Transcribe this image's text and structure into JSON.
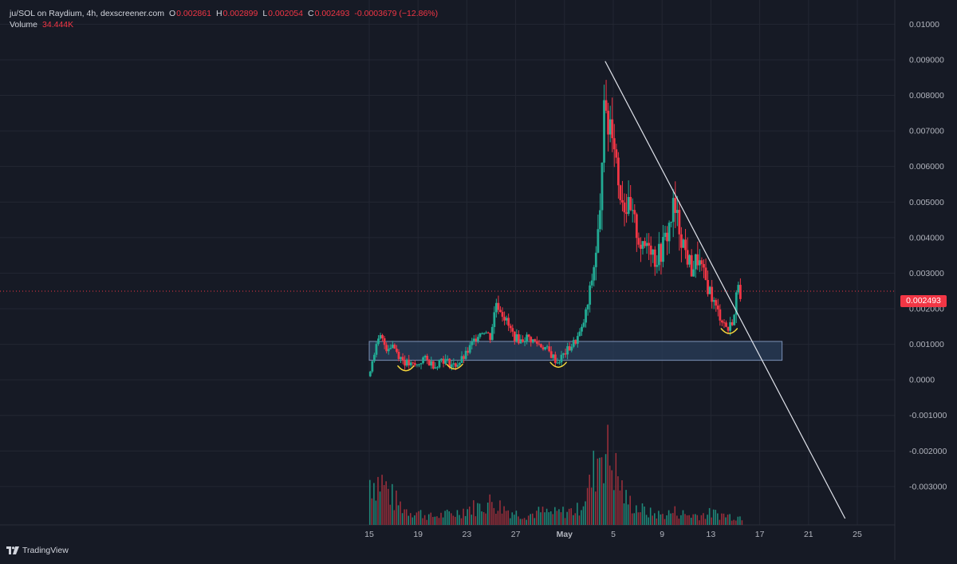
{
  "legend": {
    "title": "ju/SOL on Raydium, 4h, dexscreener.com",
    "open_key": "O",
    "open": "0.002861",
    "high_key": "H",
    "high": "0.002899",
    "low_key": "L",
    "low": "0.002054",
    "close_key": "C",
    "close": "0.002493",
    "change": "-0.0003679 (−12.86%)",
    "volume_label": "Volume",
    "volume_value": "34.444K"
  },
  "branding": {
    "name": "TradingView"
  },
  "colors": {
    "background": "#161a25",
    "grid": "#232733",
    "up": "#22ab94",
    "down": "#f23645",
    "up_volume": "#1f8a7a",
    "down_volume": "#9c2f3b",
    "axis_text": "#b2b5be",
    "trendline": "#e0e3eb",
    "support_zone_fill": "#2a3d5a",
    "support_zone_stroke": "#7d93b8",
    "smile_marks": "#f5d63b",
    "last_price_line": "#f23645"
  },
  "chart_data": {
    "type": "candlestick",
    "pair": "ju/SOL",
    "interval": "4h",
    "y_axis": {
      "min": -0.0039,
      "max": 0.0103,
      "ticks": [
        0.01,
        0.009,
        0.008,
        0.007,
        0.006,
        0.005,
        0.004,
        0.003,
        0.002,
        0.001,
        0.0,
        -0.001,
        -0.002,
        -0.003
      ],
      "tick_labels": [
        "0.01000",
        "0.009000",
        "0.008000",
        "0.007000",
        "0.006000",
        "0.005000",
        "0.004000",
        "0.003000",
        "0.002000",
        "0.001000",
        "0.0000",
        "-0.001000",
        "-0.002000",
        "-0.003000"
      ]
    },
    "x_axis": {
      "start_date": "2024-04-15",
      "end_date": "2024-05-25",
      "ticks": [
        {
          "date": "2024-04-15",
          "label": "15",
          "bold": false
        },
        {
          "date": "2024-04-19",
          "label": "19",
          "bold": false
        },
        {
          "date": "2024-04-23",
          "label": "23",
          "bold": false
        },
        {
          "date": "2024-04-27",
          "label": "27",
          "bold": false
        },
        {
          "date": "2024-05-01",
          "label": "May",
          "bold": true
        },
        {
          "date": "2024-05-05",
          "label": "5",
          "bold": false
        },
        {
          "date": "2024-05-09",
          "label": "9",
          "bold": false
        },
        {
          "date": "2024-05-13",
          "label": "13",
          "bold": false
        },
        {
          "date": "2024-05-17",
          "label": "17",
          "bold": false
        },
        {
          "date": "2024-05-21",
          "label": "21",
          "bold": false
        },
        {
          "date": "2024-05-25",
          "label": "25",
          "bold": false
        }
      ]
    },
    "grid": true,
    "last_price": 0.002493,
    "last_price_label": "0.002493",
    "price_path": [
      [
        "2024-04-15",
        0.0001
      ],
      [
        "2024-04-15T12:00",
        0.0008
      ],
      [
        "2024-04-16",
        0.0012
      ],
      [
        "2024-04-16T12:00",
        0.0009
      ],
      [
        "2024-04-17",
        0.001
      ],
      [
        "2024-04-17T12:00",
        0.0007
      ],
      [
        "2024-04-18",
        0.0005
      ],
      [
        "2024-04-18T12:00",
        0.0004
      ],
      [
        "2024-04-19",
        0.0004
      ],
      [
        "2024-04-19T12:00",
        0.0006
      ],
      [
        "2024-04-20",
        0.0005
      ],
      [
        "2024-04-20T12:00",
        0.0004
      ],
      [
        "2024-04-21",
        0.0006
      ],
      [
        "2024-04-21T12:00",
        0.0005
      ],
      [
        "2024-04-22",
        0.0004
      ],
      [
        "2024-04-22T12:00",
        0.0005
      ],
      [
        "2024-04-23",
        0.0007
      ],
      [
        "2024-04-23T12:00",
        0.001
      ],
      [
        "2024-04-24",
        0.0013
      ],
      [
        "2024-04-24T12:00",
        0.0014
      ],
      [
        "2024-04-25",
        0.0012
      ],
      [
        "2024-04-25T12:00",
        0.0022
      ],
      [
        "2024-04-26",
        0.0019
      ],
      [
        "2024-04-26T12:00",
        0.0015
      ],
      [
        "2024-04-27",
        0.0012
      ],
      [
        "2024-04-27T12:00",
        0.0011
      ],
      [
        "2024-04-28",
        0.0012
      ],
      [
        "2024-04-28T12:00",
        0.0011
      ],
      [
        "2024-04-29",
        0.001
      ],
      [
        "2024-04-29T12:00",
        0.0009
      ],
      [
        "2024-04-30",
        0.0007
      ],
      [
        "2024-04-30T12:00",
        0.0005
      ],
      [
        "2024-05-01",
        0.0007
      ],
      [
        "2024-05-01T12:00",
        0.0009
      ],
      [
        "2024-05-02",
        0.0011
      ],
      [
        "2024-05-02T12:00",
        0.0014
      ],
      [
        "2024-05-03",
        0.0021
      ],
      [
        "2024-05-03T12:00",
        0.0032
      ],
      [
        "2024-05-04",
        0.0045
      ],
      [
        "2024-05-04T08:00",
        0.0086
      ],
      [
        "2024-05-04T12:00",
        0.007
      ],
      [
        "2024-05-05",
        0.0074
      ],
      [
        "2024-05-05T12:00",
        0.0056
      ],
      [
        "2024-05-06",
        0.005
      ],
      [
        "2024-05-06T12:00",
        0.0046
      ],
      [
        "2024-05-07",
        0.0042
      ],
      [
        "2024-05-07T12:00",
        0.0036
      ],
      [
        "2024-05-08",
        0.004
      ],
      [
        "2024-05-08T12:00",
        0.0034
      ],
      [
        "2024-05-09",
        0.0036
      ],
      [
        "2024-05-09T12:00",
        0.0041
      ],
      [
        "2024-05-10",
        0.0048
      ],
      [
        "2024-05-10T12:00",
        0.0043
      ],
      [
        "2024-05-11",
        0.0036
      ],
      [
        "2024-05-11T12:00",
        0.0031
      ],
      [
        "2024-05-12",
        0.0034
      ],
      [
        "2024-05-12T12:00",
        0.0029
      ],
      [
        "2024-05-13",
        0.0025
      ],
      [
        "2024-05-13T12:00",
        0.002
      ],
      [
        "2024-05-14",
        0.0017
      ],
      [
        "2024-05-14T12:00",
        0.0014
      ],
      [
        "2024-05-15",
        0.0018
      ],
      [
        "2024-05-15T08:00",
        0.00285
      ],
      [
        "2024-05-15T12:00",
        0.002493
      ]
    ],
    "volume": [
      [
        "2024-04-15",
        0.55
      ],
      [
        "2024-04-16",
        0.52
      ],
      [
        "2024-04-17",
        0.3
      ],
      [
        "2024-04-18",
        0.18
      ],
      [
        "2024-04-19",
        0.15
      ],
      [
        "2024-04-20",
        0.1
      ],
      [
        "2024-04-21",
        0.12
      ],
      [
        "2024-04-22",
        0.14
      ],
      [
        "2024-04-23",
        0.2
      ],
      [
        "2024-04-24",
        0.22
      ],
      [
        "2024-04-25",
        0.28
      ],
      [
        "2024-04-26",
        0.2
      ],
      [
        "2024-04-27",
        0.14
      ],
      [
        "2024-04-28",
        0.12
      ],
      [
        "2024-04-29",
        0.16
      ],
      [
        "2024-04-30",
        0.14
      ],
      [
        "2024-05-01",
        0.16
      ],
      [
        "2024-05-02",
        0.18
      ],
      [
        "2024-05-03",
        0.45
      ],
      [
        "2024-05-04",
        1.0
      ],
      [
        "2024-05-05",
        0.7
      ],
      [
        "2024-05-06",
        0.3
      ],
      [
        "2024-05-07",
        0.2
      ],
      [
        "2024-05-08",
        0.14
      ],
      [
        "2024-05-09",
        0.12
      ],
      [
        "2024-05-10",
        0.16
      ],
      [
        "2024-05-11",
        0.12
      ],
      [
        "2024-05-12",
        0.12
      ],
      [
        "2024-05-13",
        0.14
      ],
      [
        "2024-05-14",
        0.12
      ],
      [
        "2024-05-15",
        0.1
      ]
    ],
    "annotations": {
      "trendline": [
        [
          "2024-05-04T08:00",
          0.00896
        ],
        [
          "2024-05-24T00:00",
          -0.0039
        ]
      ],
      "support_zone": {
        "from": "2024-04-15",
        "to": "2024-05-18T20:00",
        "low": 0.00055,
        "high": 0.00108
      },
      "smile_marks": [
        {
          "date": "2024-04-18",
          "price": 0.0003
        },
        {
          "date": "2024-04-22",
          "price": 0.00035
        },
        {
          "date": "2024-04-30T12:00",
          "price": 0.0004
        },
        {
          "date": "2024-05-14T12:00",
          "price": 0.00135
        }
      ]
    }
  }
}
